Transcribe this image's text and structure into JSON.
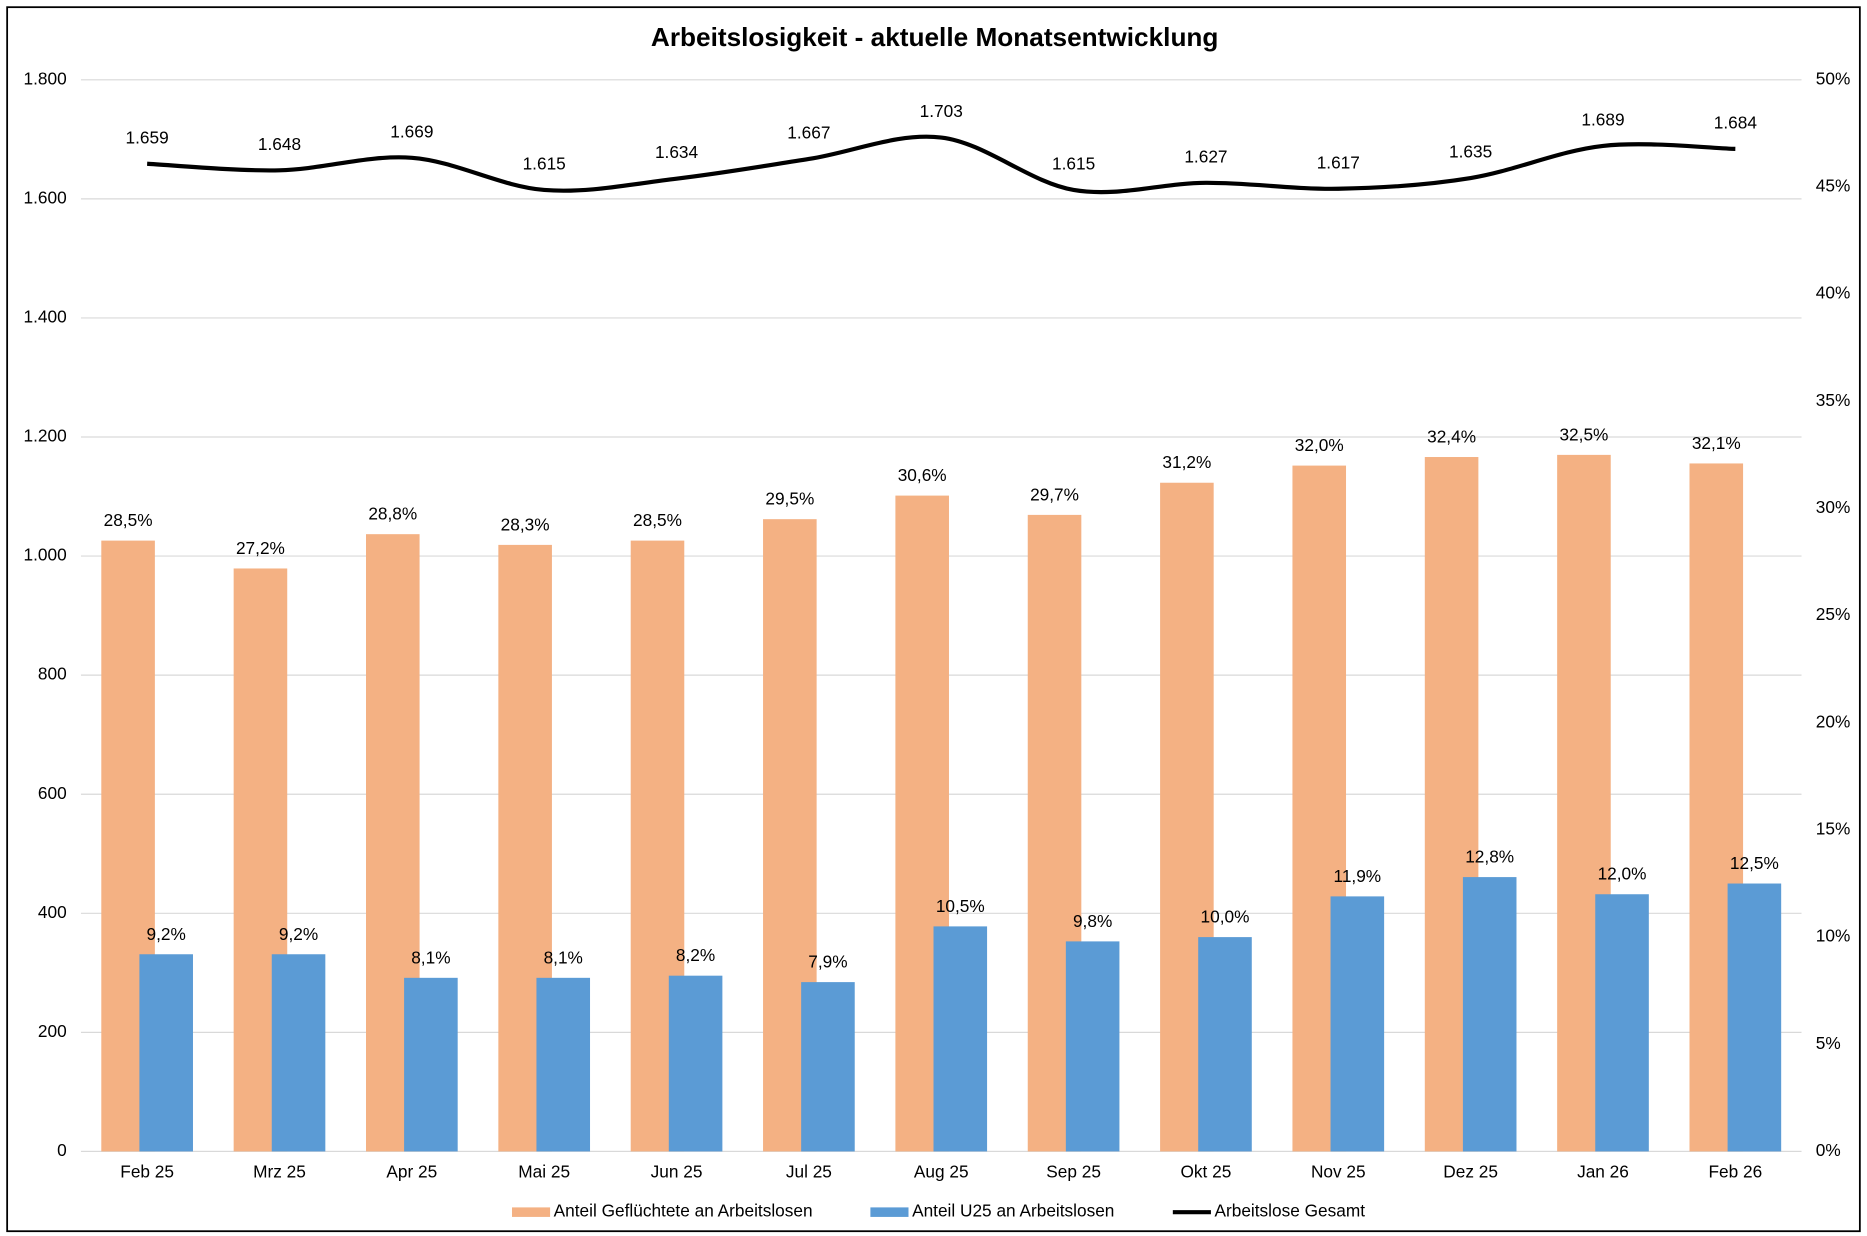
{
  "chart_data": {
    "type": "bar+line",
    "title": "Arbeitslosigkeit - aktuelle Monatsentwicklung",
    "categories": [
      "Feb 25",
      "Mrz 25",
      "Apr 25",
      "Mai 25",
      "Jun 25",
      "Jul 25",
      "Aug 25",
      "Sep 25",
      "Okt 25",
      "Nov 25",
      "Dez 25",
      "Jan 26",
      "Feb 26"
    ],
    "series": [
      {
        "name": "Anteil Geflüchtete an Arbeitslosen",
        "type": "bar",
        "axis": "y2",
        "color": "#f4b183",
        "values": [
          28.5,
          27.2,
          28.8,
          28.3,
          28.5,
          29.5,
          30.6,
          29.7,
          31.2,
          32.0,
          32.4,
          32.5,
          32.1
        ],
        "value_labels": [
          "28,5%",
          "27,2%",
          "28,8%",
          "28,3%",
          "28,5%",
          "29,5%",
          "30,6%",
          "29,7%",
          "31,2%",
          "32,0%",
          "32,4%",
          "32,5%",
          "32,1%"
        ]
      },
      {
        "name": "Anteil U25 an Arbeitslosen",
        "type": "bar",
        "axis": "y2",
        "color": "#5b9bd5",
        "values": [
          9.2,
          9.2,
          8.1,
          8.1,
          8.2,
          7.9,
          10.5,
          9.8,
          10.0,
          11.9,
          12.8,
          12.0,
          12.5
        ],
        "value_labels": [
          "9,2%",
          "9,2%",
          "8,1%",
          "8,1%",
          "8,2%",
          "7,9%",
          "10,5%",
          "9,8%",
          "10,0%",
          "11,9%",
          "12,8%",
          "12,0%",
          "12,5%"
        ]
      },
      {
        "name": "Arbeitslose Gesamt",
        "type": "line",
        "axis": "y",
        "color": "#000000",
        "values": [
          1659,
          1648,
          1669,
          1615,
          1634,
          1667,
          1703,
          1615,
          1627,
          1617,
          1635,
          1689,
          1684
        ],
        "value_labels": [
          "1.659",
          "1.648",
          "1.669",
          "1.615",
          "1.634",
          "1.667",
          "1.703",
          "1.615",
          "1.627",
          "1.617",
          "1.635",
          "1.689",
          "1.684"
        ]
      }
    ],
    "ylim": [
      0,
      1800
    ],
    "yticks": [
      0,
      200,
      400,
      600,
      800,
      {
        "value": 1000,
        "label": "1.000"
      },
      {
        "value": 1200,
        "label": "1.200"
      },
      {
        "value": 1400,
        "label": "1.400"
      },
      {
        "value": 1600,
        "label": "1.600"
      },
      {
        "value": 1800,
        "label": "1.800"
      }
    ],
    "y2lim": [
      0,
      50
    ],
    "y2ticks": [
      {
        "value": 0,
        "label": "0%"
      },
      {
        "value": 5,
        "label": "5%"
      },
      {
        "value": 10,
        "label": "10%"
      },
      {
        "value": 15,
        "label": "15%"
      },
      {
        "value": 20,
        "label": "20%"
      },
      {
        "value": 25,
        "label": "25%"
      },
      {
        "value": 30,
        "label": "30%"
      },
      {
        "value": 35,
        "label": "35%"
      },
      {
        "value": 40,
        "label": "40%"
      },
      {
        "value": 45,
        "label": "45%"
      },
      {
        "value": 50,
        "label": "50%"
      }
    ],
    "grid": true,
    "legend": "bottom"
  }
}
